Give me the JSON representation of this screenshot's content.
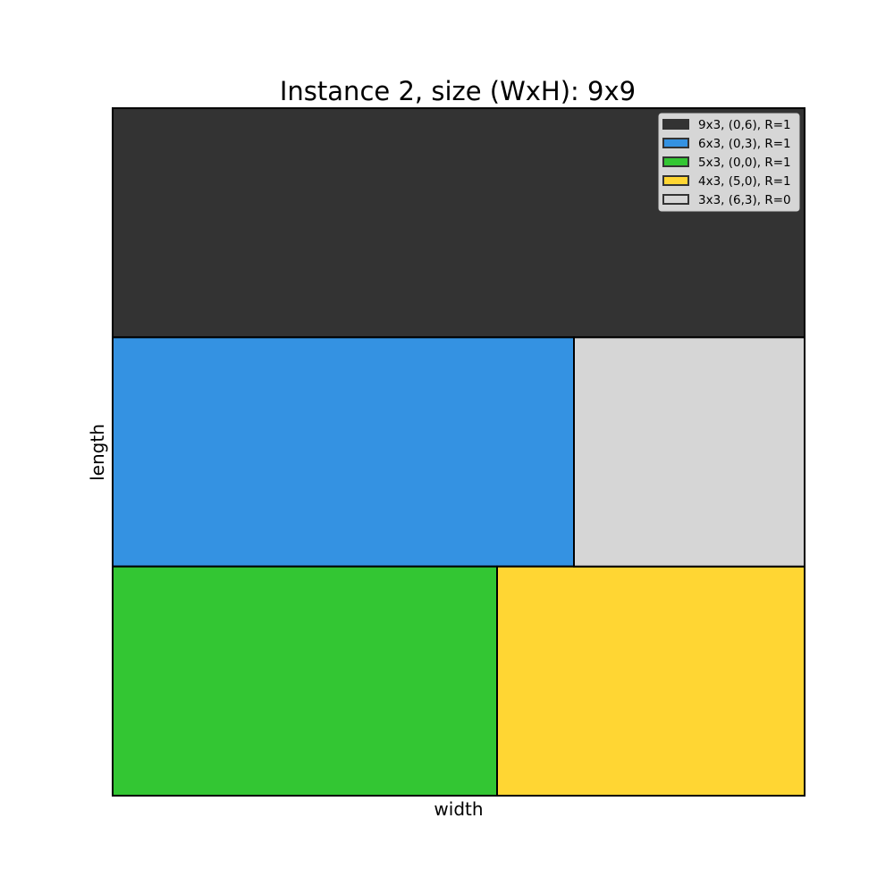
{
  "chart_data": {
    "type": "rectangle-packing",
    "title": "Instance 2, size (WxH): 9x9",
    "xlabel": "width",
    "ylabel": "length",
    "container": {
      "width": 9,
      "height": 9
    },
    "xlim": [
      0,
      9
    ],
    "ylim": [
      0,
      9
    ],
    "grid": false,
    "ticks": false,
    "legend_position": "top-right",
    "rectangles": [
      {
        "label": "9x3, (0,6), R=1",
        "x": 0,
        "y": 6,
        "w": 9,
        "h": 3,
        "rotated": 1,
        "color": "#333333"
      },
      {
        "label": "6x3, (0,3), R=1",
        "x": 0,
        "y": 3,
        "w": 6,
        "h": 3,
        "rotated": 1,
        "color": "#3492e2"
      },
      {
        "label": "5x3, (0,0), R=1",
        "x": 0,
        "y": 0,
        "w": 5,
        "h": 3,
        "rotated": 1,
        "color": "#33c633"
      },
      {
        "label": "4x3, (5,0), R=1",
        "x": 5,
        "y": 0,
        "w": 4,
        "h": 3,
        "rotated": 1,
        "color": "#ffd633"
      },
      {
        "label": "3x3, (6,3), R=0",
        "x": 6,
        "y": 3,
        "w": 3,
        "h": 3,
        "rotated": 0,
        "color": "#d6d6d6"
      }
    ]
  }
}
